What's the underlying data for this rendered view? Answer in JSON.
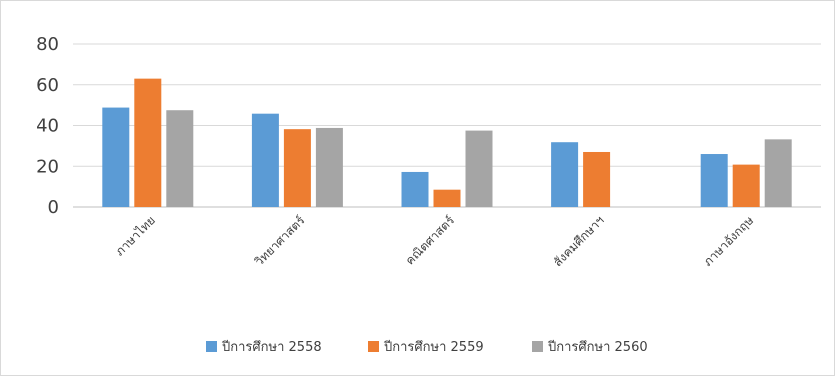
{
  "chart_data": {
    "type": "bar",
    "categories": [
      "ภาษาไทย",
      "วิทยาศาสตร์",
      "คณิตศาสตร์",
      "สังคมศึกษาฯ",
      "ภาษาอังกฤษ"
    ],
    "series": [
      {
        "name": "ปีการศึกษา 2558",
        "color": "#5b9bd5",
        "values": [
          48.8,
          45.8,
          17.2,
          31.8,
          26.0
        ]
      },
      {
        "name": "ปีการศึกษา 2559",
        "color": "#ed7d31",
        "values": [
          63.0,
          38.2,
          8.5,
          27.0,
          20.8
        ]
      },
      {
        "name": "ปีการศึกษา 2560",
        "color": "#a5a5a5",
        "values": [
          47.5,
          38.8,
          37.5,
          null,
          33.2
        ]
      }
    ],
    "ylim": [
      0,
      80
    ],
    "yticks": [
      0,
      20,
      40,
      60,
      80
    ],
    "grid": true,
    "legend_position": "bottom",
    "title": "",
    "xlabel": "",
    "ylabel": ""
  }
}
